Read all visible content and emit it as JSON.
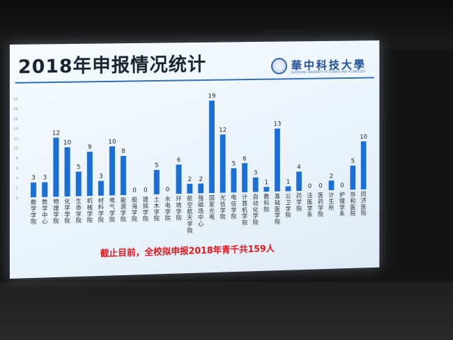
{
  "slide": {
    "title": "2018年申报情况统计",
    "logo_text": "華中科技大學",
    "logo_subtitle": "HUAZHONG UNIVERSITY OF SCIENCE AND TECHNOLOGY",
    "footnote": "截止目前，全校拟申报2018年青千共159人"
  },
  "chart_data": {
    "type": "bar",
    "title": "2018年申报情况统计",
    "xlabel": "",
    "ylabel": "",
    "ylim": [
      0,
      20
    ],
    "yticks": [
      0,
      2,
      4,
      6,
      8,
      10,
      12,
      14,
      16,
      18,
      20
    ],
    "grid": false,
    "legend": "none",
    "bar_color": "#1a6ed4",
    "categories": [
      "数学学院",
      "数学中心",
      "物理学院",
      "化学学院",
      "生命学院",
      "机械学院",
      "材料学院",
      "电气学院",
      "能源学院",
      "船海学院",
      "建规学院",
      "土木学院",
      "水电学院",
      "环境学院",
      "航空航天学院",
      "强磁场中心",
      "国家光电",
      "光信学院",
      "电信学院",
      "计算机学院",
      "自动化学院",
      "教科院",
      "基础医学院",
      "公卫学院",
      "药学院",
      "法医学系",
      "医药学院",
      "计生所",
      "护理学系",
      "协和医院",
      "同济医院"
    ],
    "values": [
      3,
      3,
      12,
      10,
      5,
      9,
      3,
      10,
      8,
      0,
      0,
      5,
      0,
      6,
      2,
      2,
      19,
      12,
      5,
      6,
      3,
      1,
      13,
      1,
      4,
      0,
      0,
      2,
      0,
      5,
      10
    ],
    "value_labels": [
      "3",
      "3",
      "12",
      "10",
      "5",
      "9",
      "3",
      "10",
      "8",
      "0",
      "0",
      "5",
      "0",
      "6",
      "2",
      "2",
      "19",
      "12",
      "5",
      "6",
      "3",
      "1",
      "13",
      "1",
      "4",
      "0",
      "0",
      "2",
      "0",
      "5",
      "10"
    ]
  }
}
